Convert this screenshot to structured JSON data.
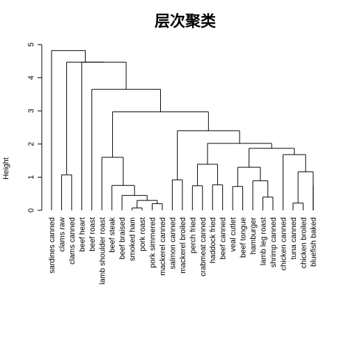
{
  "chart_data": {
    "type": "dendrogram",
    "title": "层次聚类",
    "ylabel": "Height",
    "ylim": [
      0,
      5
    ],
    "yticks": [
      0,
      1,
      2,
      3,
      4,
      5
    ],
    "leaves": [
      "sardines canned",
      "clams raw",
      "clams canned",
      "beef heart",
      "beef roast",
      "lamb shoulder roast",
      "beef steak",
      "beef braised",
      "smoked ham",
      "pork roast",
      "pork simmered",
      "mackerel canned",
      "salmon canned",
      "mackerel broiled",
      "perch fried",
      "crabmeat canned",
      "haddock fried",
      "beef canned",
      "veal cutlet",
      "beef tongue",
      "hamburger",
      "lamb leg roast",
      "shrimp canned",
      "chicken canned",
      "tuna canned",
      "chicken broiled",
      "bluefish baked"
    ],
    "merges": [
      {
        "id": "m1",
        "left": "L8",
        "right": "L9",
        "height": 0.07
      },
      {
        "id": "m2",
        "left": "L10",
        "right": "L11",
        "height": 0.2
      },
      {
        "id": "m3",
        "left": "L23",
        "right": "L24",
        "height": 0.22
      },
      {
        "id": "m4",
        "left": "m1",
        "right": "m2",
        "height": 0.3
      },
      {
        "id": "m5",
        "left": "L20",
        "right": "L21",
        "height": 0.4
      },
      {
        "id": "m6",
        "left": "L7",
        "right": "m4",
        "height": 0.45
      },
      {
        "id": "m7",
        "left": "L17",
        "right": "L18",
        "height": 0.72
      },
      {
        "id": "m8",
        "left": "L13",
        "right": "L14",
        "height": 0.74
      },
      {
        "id": "m9",
        "left": "L6",
        "right": "m6",
        "height": 0.75
      },
      {
        "id": "m10",
        "left": "L15",
        "right": "L16",
        "height": 0.77
      },
      {
        "id": "m11",
        "left": "L25",
        "right": "L26",
        "height": 0.77
      },
      {
        "id": "m12",
        "left": "L19",
        "right": "m5",
        "height": 0.89
      },
      {
        "id": "m13",
        "left": "L11b",
        "right": "L12",
        "height": 0.92
      },
      {
        "id": "m14",
        "left": "L1",
        "right": "L2",
        "height": 1.07
      },
      {
        "id": "m15",
        "left": "m3",
        "right": "m11",
        "height": 1.16
      },
      {
        "id": "m16",
        "left": "m7",
        "right": "m12",
        "height": 1.3
      },
      {
        "id": "m17",
        "left": "m8",
        "right": "m10",
        "height": 1.39
      },
      {
        "id": "m18",
        "left": "L5",
        "right": "m9",
        "height": 1.6
      },
      {
        "id": "m19",
        "left": "L22",
        "right": "m15",
        "height": 1.68
      },
      {
        "id": "m20",
        "left": "m16",
        "right": "m19",
        "height": 1.87
      },
      {
        "id": "m21",
        "left": "m17",
        "right": "m20",
        "height": 2.02
      },
      {
        "id": "m22",
        "left": "m13",
        "right": "m21",
        "height": 2.4
      },
      {
        "id": "m23",
        "left": "m18",
        "right": "m22",
        "height": 2.97
      },
      {
        "id": "m24",
        "left": "L3",
        "right": "L4",
        "height": 0.0
      },
      {
        "id": "m25",
        "left": "L4",
        "right": "m23",
        "height": 3.65
      },
      {
        "id": "m26",
        "left": "L3",
        "right": "m25",
        "height": 4.47
      },
      {
        "id": "m27",
        "left": "m14",
        "right": "m26",
        "height": 4.47
      },
      {
        "id": "m28",
        "left": "L0",
        "right": "m27",
        "height": 4.82
      }
    ],
    "grid": false,
    "legend": "none"
  }
}
